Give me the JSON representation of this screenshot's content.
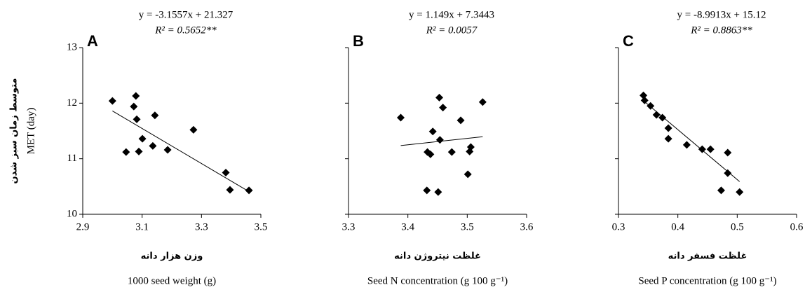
{
  "chart_data": [
    {
      "type": "scatter",
      "panel": "A",
      "equation": "y = -3.1557x + 21.327",
      "r2": "R² = 0.5652**",
      "ylabel": "MET (day)",
      "ylabel_fa": "متوسط زمان سبز شدن",
      "xlabel_fa": "وزن هزار دانه",
      "xlabel": "1000 seed weight (g)",
      "trendline": {
        "slope": -3.1557,
        "intercept": 21.327
      },
      "x": [
        3.0,
        3.079,
        3.072,
        3.082,
        3.046,
        3.089,
        3.101,
        3.143,
        3.136,
        3.186,
        3.273,
        3.382,
        3.396,
        3.46
      ],
      "values": [
        12.04,
        12.13,
        11.94,
        11.71,
        11.12,
        11.13,
        11.36,
        11.78,
        11.23,
        11.16,
        11.52,
        10.75,
        10.44,
        10.43
      ],
      "color": "#000000",
      "xlim": [
        2.9,
        3.5
      ],
      "xticks": [
        2.9,
        3.1,
        3.3,
        3.5
      ],
      "ylim": [
        10,
        13
      ],
      "yticks": [
        10,
        11,
        12,
        13
      ]
    },
    {
      "type": "scatter",
      "panel": "B",
      "equation": "y = 1.149x + 7.3443",
      "r2": "R² = 0.0057",
      "xlabel_fa": "غلظت نیتروژن دانه",
      "xlabel": "Seed N concentration (g 100 g⁻¹)",
      "trendline": {
        "slope": 1.149,
        "intercept": 7.3443
      },
      "x": [
        3.388,
        3.453,
        3.459,
        3.442,
        3.454,
        3.489,
        3.526,
        3.433,
        3.438,
        3.474,
        3.506,
        3.504,
        3.501,
        3.432,
        3.451
      ],
      "values": [
        11.74,
        12.1,
        11.92,
        11.49,
        11.34,
        11.69,
        12.02,
        11.12,
        11.08,
        11.12,
        11.21,
        11.13,
        10.72,
        10.43,
        10.4
      ],
      "color": "#000000",
      "xlim": [
        3.3,
        3.6
      ],
      "xticks": [
        3.3,
        3.4,
        3.5,
        3.6
      ],
      "ylim": [
        10,
        13
      ],
      "yticks": [
        10,
        11,
        12,
        13
      ]
    },
    {
      "type": "scatter",
      "panel": "C",
      "equation": "y = -8.9913x + 15.12",
      "r2": "R² = 0.8863**",
      "xlabel_fa": "غلظت فسفر دانه",
      "xlabel": "Seed P concentration (g 100 g⁻¹)",
      "trendline": {
        "slope": -8.9913,
        "intercept": 15.12
      },
      "x": [
        0.342,
        0.344,
        0.354,
        0.364,
        0.374,
        0.384,
        0.384,
        0.415,
        0.441,
        0.455,
        0.484,
        0.484,
        0.473,
        0.504
      ],
      "values": [
        12.14,
        12.05,
        11.95,
        11.79,
        11.74,
        11.55,
        11.36,
        11.25,
        11.17,
        11.17,
        11.11,
        10.74,
        10.43,
        10.4
      ],
      "color": "#000000",
      "xlim": [
        0.3,
        0.6
      ],
      "xticks": [
        0.3,
        0.4,
        0.5,
        0.6
      ],
      "ylim": [
        10,
        13
      ],
      "yticks": [
        10,
        11,
        12,
        13
      ]
    }
  ]
}
